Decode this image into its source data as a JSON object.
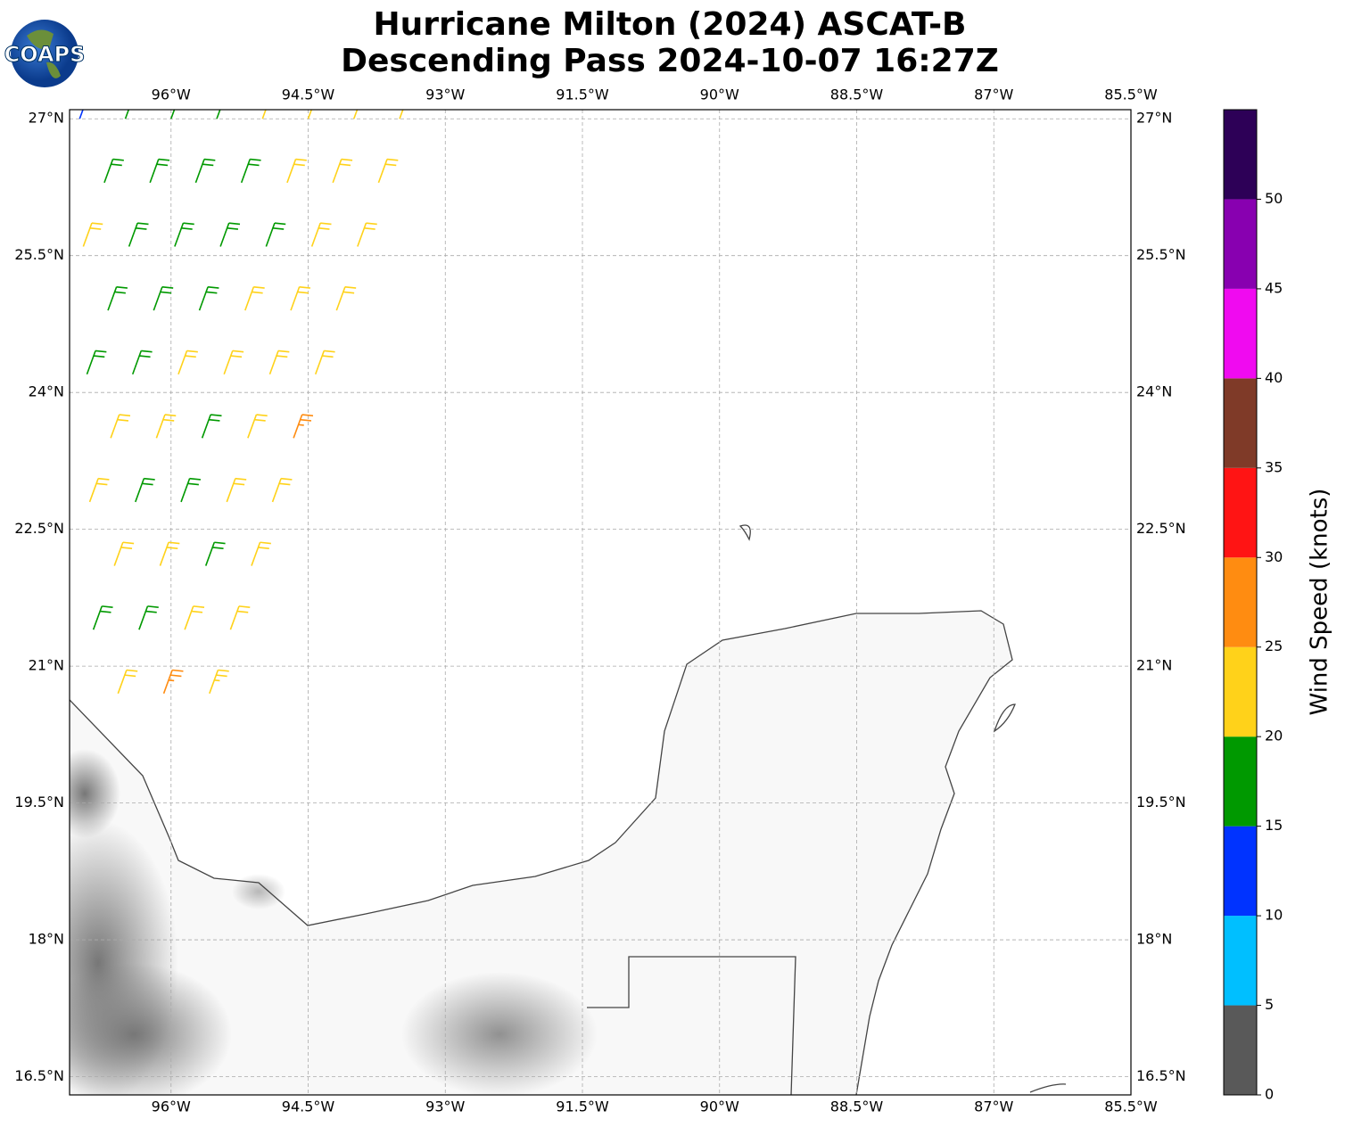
{
  "chart_data": {
    "type": "barbs",
    "logo": "COAPS",
    "title": "Hurricane Milton (2024) ASCAT-B",
    "subtitle": "Descending Pass 2024-10-07 16:27Z",
    "xlim": [
      -97.11,
      -85.5
    ],
    "ylim": [
      16.3,
      27.1
    ],
    "xticks": [
      {
        "value": -96,
        "label": "96°W"
      },
      {
        "value": -94.5,
        "label": "94.5°W"
      },
      {
        "value": -93,
        "label": "93°W"
      },
      {
        "value": -91.5,
        "label": "91.5°W"
      },
      {
        "value": -90,
        "label": "90°W"
      },
      {
        "value": -88.5,
        "label": "88.5°W"
      },
      {
        "value": -87,
        "label": "87°W"
      },
      {
        "value": -85.5,
        "label": "85.5°W"
      }
    ],
    "yticks": [
      {
        "value": 27,
        "label": "27°N"
      },
      {
        "value": 25.5,
        "label": "25.5°N"
      },
      {
        "value": 24,
        "label": "24°N"
      },
      {
        "value": 22.5,
        "label": "22.5°N"
      },
      {
        "value": 21,
        "label": "21°N"
      },
      {
        "value": 19.5,
        "label": "19.5°N"
      },
      {
        "value": 18,
        "label": "18°N"
      },
      {
        "value": 16.5,
        "label": "16.5°N"
      }
    ],
    "grid": true,
    "barbs": {
      "lon": [
        -93.5,
        -93.73,
        -93.96,
        -94.19,
        -94.42,
        -94.66,
        -94.89,
        -95.12,
        -95.35,
        -95.58,
        -94.0,
        -94.23,
        -94.46,
        -94.69,
        -94.92,
        -95.16,
        -95.39,
        -95.62,
        -95.85,
        -96.08,
        -94.5,
        -94.73,
        -94.96,
        -95.19,
        -95.42,
        -95.66,
        -95.89,
        -96.12,
        -96.35,
        -96.58,
        -95.0,
        -95.23,
        -95.46,
        -95.69,
        -95.92,
        -96.16,
        -96.39,
        -96.62,
        -96.85,
        -95.5,
        -95.73,
        -95.96,
        -96.19,
        -96.42,
        -96.66,
        -96.89,
        -96.0,
        -96.23,
        -96.46,
        -96.69,
        -96.92,
        -96.5,
        -96.73,
        -96.96,
        -97.0
      ],
      "lat": [
        27,
        26.3,
        25.6,
        24.9,
        24.2,
        23.5,
        22.8,
        22.1,
        21.4,
        20.7,
        27,
        26.3,
        25.6,
        24.9,
        24.2,
        23.5,
        22.8,
        22.1,
        21.4,
        20.7,
        27,
        26.3,
        25.6,
        24.9,
        24.2,
        23.5,
        22.8,
        22.1,
        21.4,
        20.7,
        27,
        26.3,
        25.6,
        24.9,
        24.2,
        23.5,
        22.8,
        22.1,
        21.4,
        27,
        26.3,
        25.6,
        24.9,
        24.2,
        23.5,
        22.8,
        27,
        26.3,
        25.6,
        24.9,
        24.2,
        27,
        26.3,
        25.6,
        27
      ],
      "speed": [
        22,
        22,
        22,
        22,
        22,
        27,
        22,
        22,
        22,
        23,
        22,
        22,
        22,
        22,
        22,
        22,
        22,
        18,
        22,
        27,
        22,
        22,
        18,
        22,
        22,
        18,
        18,
        22,
        18,
        22,
        22,
        18,
        18,
        18,
        22,
        22,
        18,
        22,
        18,
        18,
        18,
        18,
        18,
        18,
        22,
        22,
        18,
        18,
        18,
        18,
        18,
        18,
        18,
        22,
        12
      ]
    },
    "colorbar": {
      "label": "Wind Speed (knots)",
      "bounds": [
        0,
        5,
        10,
        15,
        20,
        25,
        30,
        35,
        40,
        45,
        50,
        55
      ],
      "colors": [
        "#595959",
        "#00bfff",
        "#0033ff",
        "#009900",
        "#ffd21a",
        "#ff8c11",
        "#ff1414",
        "#7f3a28",
        "#f00af0",
        "#8800b0",
        "#2d0057"
      ],
      "ticks": [
        0,
        5,
        10,
        15,
        20,
        25,
        30,
        35,
        40,
        45,
        50
      ]
    }
  }
}
